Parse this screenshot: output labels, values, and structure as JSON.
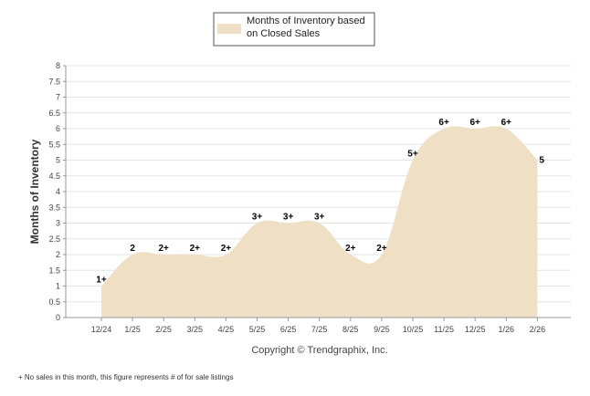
{
  "chart_data": {
    "type": "area",
    "title": "",
    "legend": {
      "label_line1": "Months of Inventory based",
      "label_line2": "on Closed Sales",
      "position": "top-center"
    },
    "ylabel": "Months of Inventory",
    "xlabel": "",
    "ylim": [
      0,
      8
    ],
    "yticks": [
      "0",
      "0.5",
      "1",
      "1.5",
      "2",
      "2.5",
      "3",
      "3.5",
      "4",
      "4.5",
      "5",
      "5.5",
      "6",
      "6.5",
      "7",
      "7.5",
      "8"
    ],
    "categories": [
      "12/24",
      "1/25",
      "2/25",
      "3/25",
      "4/25",
      "5/25",
      "6/25",
      "7/25",
      "8/25",
      "9/25",
      "10/25",
      "11/25",
      "12/25",
      "1/26",
      "2/26"
    ],
    "values": [
      1,
      2,
      2,
      2,
      2,
      3,
      3,
      3,
      2,
      2,
      5,
      6,
      6,
      6,
      5
    ],
    "data_labels": [
      "1+",
      "2",
      "2+",
      "2+",
      "2+",
      "3+",
      "3+",
      "3+",
      "2+",
      "2+",
      "5+",
      "6+",
      "6+",
      "6+",
      "5"
    ],
    "grid": true,
    "colors": {
      "area": "#efe0c5",
      "grid": "#e4e4e4",
      "axis": "#999999"
    }
  },
  "copyright": "Copyright © Trendgraphix, Inc.",
  "footnote": "+ No sales in this month, this figure represents # of for sale listings"
}
